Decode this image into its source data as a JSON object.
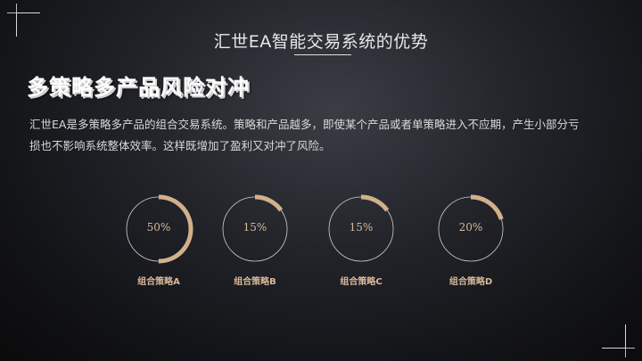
{
  "slide": {
    "title": "汇世EA智能交易系统的优势",
    "headline": "多策略多产品风险对冲",
    "paragraph": "汇世EA是多策略多产品的组合交易系统。策略和产品越多，即使某个产品或者单策略进入不应期，产生小部分亏损也不影响系统整体效率。这样既增加了盈利又对冲了风险。"
  },
  "theme": {
    "accent": "#d2b08c",
    "ring_track": "#cfcfcf"
  },
  "chart_data": {
    "type": "donut",
    "items": [
      {
        "label": "组合策略A",
        "value": 50,
        "display": "50%"
      },
      {
        "label": "组合策略B",
        "value": 15,
        "display": "15%"
      },
      {
        "label": "组合策略C",
        "value": 15,
        "display": "15%"
      },
      {
        "label": "组合策略D",
        "value": 20,
        "display": "20%"
      }
    ]
  }
}
